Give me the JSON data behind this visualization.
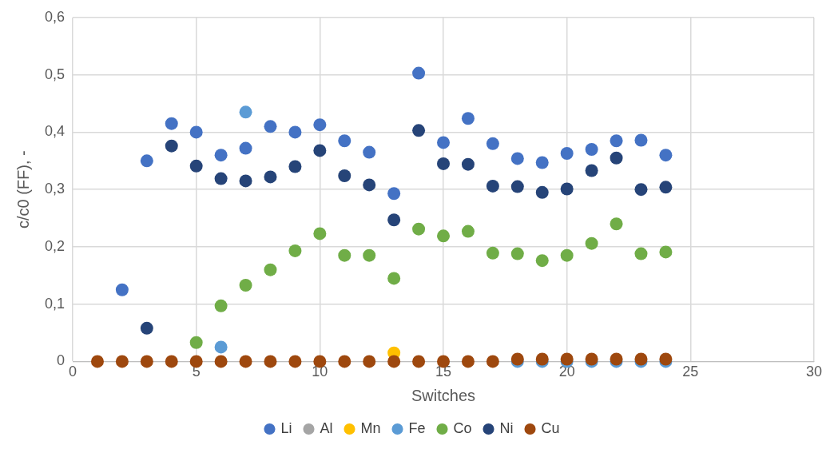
{
  "chart_data": {
    "type": "scatter",
    "xlabel": "Switches",
    "ylabel": "c/c0 (FF), -",
    "x": [
      1,
      2,
      3,
      4,
      5,
      6,
      7,
      8,
      9,
      10,
      11,
      12,
      13,
      14,
      15,
      16,
      17,
      18,
      19,
      20,
      21,
      22,
      23,
      24
    ],
    "series": [
      {
        "name": "Li",
        "color": "#4472c4",
        "values": [
          null,
          0.125,
          0.35,
          0.415,
          0.4,
          0.36,
          0.372,
          0.41,
          0.4,
          0.413,
          0.385,
          0.365,
          0.293,
          0.503,
          0.382,
          0.424,
          0.38,
          0.354,
          0.347,
          0.363,
          0.37,
          0.385,
          0.386,
          0.36
        ]
      },
      {
        "name": "Al",
        "color": "#a5a5a5",
        "values": [
          null,
          null,
          null,
          null,
          null,
          null,
          null,
          null,
          null,
          null,
          null,
          null,
          null,
          null,
          null,
          null,
          null,
          null,
          null,
          null,
          null,
          null,
          null,
          null
        ]
      },
      {
        "name": "Mn",
        "color": "#ffc000",
        "values": [
          null,
          null,
          null,
          null,
          null,
          null,
          null,
          null,
          null,
          null,
          null,
          null,
          0.015,
          null,
          null,
          null,
          null,
          null,
          null,
          null,
          null,
          null,
          null,
          null
        ]
      },
      {
        "name": "Fe",
        "color": "#5b9bd5",
        "values": [
          null,
          null,
          null,
          null,
          null,
          0.025,
          0.435,
          null,
          null,
          null,
          null,
          null,
          null,
          null,
          null,
          null,
          null,
          0,
          0,
          0,
          0,
          0,
          0,
          0
        ]
      },
      {
        "name": "Co",
        "color": "#70ad47",
        "values": [
          null,
          null,
          null,
          null,
          0.033,
          0.097,
          0.133,
          0.16,
          0.193,
          0.223,
          0.185,
          0.185,
          0.145,
          0.231,
          0.219,
          0.227,
          0.189,
          0.188,
          0.176,
          0.185,
          0.206,
          0.24,
          0.188,
          0.191
        ]
      },
      {
        "name": "Ni",
        "color": "#264478",
        "values": [
          null,
          null,
          0.058,
          0.376,
          0.341,
          0.319,
          0.315,
          0.322,
          0.34,
          0.368,
          0.324,
          0.308,
          0.247,
          0.403,
          0.345,
          0.344,
          0.306,
          0.305,
          0.295,
          0.301,
          0.333,
          0.355,
          0.3,
          0.304
        ]
      },
      {
        "name": "Cu",
        "color": "#9e480e",
        "values": [
          0,
          0,
          0,
          0,
          0,
          0,
          0,
          0,
          0,
          0,
          0,
          0,
          0,
          0,
          0,
          0,
          0,
          0.004,
          0.004,
          0.004,
          0.004,
          0.004,
          0.004,
          0.004
        ]
      }
    ],
    "xlim": [
      0,
      30
    ],
    "xticks": [
      0,
      5,
      10,
      15,
      20,
      25,
      30
    ],
    "ylim": [
      0,
      0.6
    ],
    "yticks": [
      0,
      {
        "value": 0.1,
        "label": "0,1"
      },
      {
        "value": 0.2,
        "label": "0,2"
      },
      {
        "value": 0.3,
        "label": "0,3"
      },
      {
        "value": 0.4,
        "label": "0,4"
      },
      {
        "value": 0.5,
        "label": "0,5"
      },
      {
        "value": 0.6,
        "label": "0,6"
      }
    ],
    "grid": true,
    "legend": "bottom",
    "marker": "circle"
  }
}
